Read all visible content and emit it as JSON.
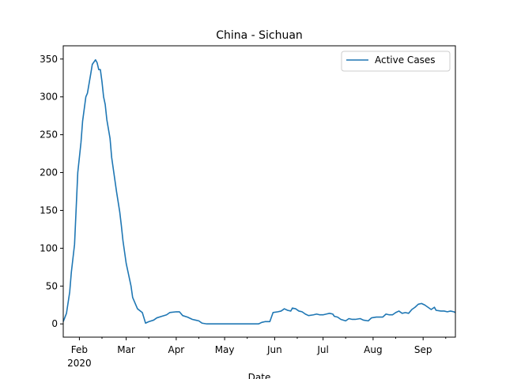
{
  "chart_data": {
    "type": "line",
    "title": "China - Sichuan",
    "xlabel": "Date",
    "ylabel": "",
    "xlim": [
      "2020-01-22",
      "2020-09-21"
    ],
    "ylim": [
      -17.5,
      367.5
    ],
    "y_ticks": [
      0,
      50,
      100,
      150,
      200,
      250,
      300,
      350
    ],
    "x_ticks": [
      {
        "date": "2020-02-01",
        "label": "Feb",
        "sublabel": "2020"
      },
      {
        "date": "2020-03-01",
        "label": "Mar",
        "sublabel": ""
      },
      {
        "date": "2020-04-01",
        "label": "Apr",
        "sublabel": ""
      },
      {
        "date": "2020-05-01",
        "label": "May",
        "sublabel": ""
      },
      {
        "date": "2020-06-01",
        "label": "Jun",
        "sublabel": ""
      },
      {
        "date": "2020-07-01",
        "label": "Jul",
        "sublabel": ""
      },
      {
        "date": "2020-08-01",
        "label": "Aug",
        "sublabel": ""
      },
      {
        "date": "2020-09-01",
        "label": "Sep",
        "sublabel": ""
      }
    ],
    "grid": false,
    "legend": "top-right",
    "series": [
      {
        "name": "Active Cases",
        "color": "#1f77b4",
        "points": [
          [
            "2020-01-22",
            3
          ],
          [
            "2020-01-24",
            14
          ],
          [
            "2020-01-26",
            42
          ],
          [
            "2020-01-27",
            68
          ],
          [
            "2020-01-29",
            105
          ],
          [
            "2020-01-31",
            200
          ],
          [
            "2020-02-02",
            240
          ],
          [
            "2020-02-03",
            268
          ],
          [
            "2020-02-05",
            300
          ],
          [
            "2020-02-06",
            305
          ],
          [
            "2020-02-08",
            330
          ],
          [
            "2020-02-09",
            343
          ],
          [
            "2020-02-11",
            349
          ],
          [
            "2020-02-12",
            345
          ],
          [
            "2020-02-13",
            336
          ],
          [
            "2020-02-14",
            336
          ],
          [
            "2020-02-15",
            320
          ],
          [
            "2020-02-16",
            300
          ],
          [
            "2020-02-17",
            290
          ],
          [
            "2020-02-18",
            270
          ],
          [
            "2020-02-20",
            245
          ],
          [
            "2020-02-21",
            220
          ],
          [
            "2020-02-23",
            190
          ],
          [
            "2020-02-24",
            175
          ],
          [
            "2020-02-26",
            148
          ],
          [
            "2020-02-27",
            130
          ],
          [
            "2020-02-28",
            110
          ],
          [
            "2020-03-01",
            80
          ],
          [
            "2020-03-02",
            70
          ],
          [
            "2020-03-04",
            50
          ],
          [
            "2020-03-05",
            35
          ],
          [
            "2020-03-07",
            25
          ],
          [
            "2020-03-08",
            20
          ],
          [
            "2020-03-11",
            15
          ],
          [
            "2020-03-12",
            8
          ],
          [
            "2020-03-13",
            1
          ],
          [
            "2020-03-15",
            3
          ],
          [
            "2020-03-18",
            5
          ],
          [
            "2020-03-20",
            8
          ],
          [
            "2020-03-23",
            10
          ],
          [
            "2020-03-26",
            12
          ],
          [
            "2020-03-28",
            15
          ],
          [
            "2020-04-01",
            16
          ],
          [
            "2020-04-03",
            16
          ],
          [
            "2020-04-05",
            11
          ],
          [
            "2020-04-08",
            9
          ],
          [
            "2020-04-11",
            6
          ],
          [
            "2020-04-13",
            5
          ],
          [
            "2020-04-15",
            4
          ],
          [
            "2020-04-17",
            1
          ],
          [
            "2020-04-20",
            0
          ],
          [
            "2020-05-01",
            0
          ],
          [
            "2020-05-15",
            0
          ],
          [
            "2020-05-20",
            0
          ],
          [
            "2020-05-22",
            0
          ],
          [
            "2020-05-24",
            2
          ],
          [
            "2020-05-26",
            3
          ],
          [
            "2020-05-28",
            3
          ],
          [
            "2020-05-29",
            3
          ],
          [
            "2020-05-31",
            15
          ],
          [
            "2020-06-03",
            16
          ],
          [
            "2020-06-05",
            17
          ],
          [
            "2020-06-07",
            20
          ],
          [
            "2020-06-09",
            18
          ],
          [
            "2020-06-11",
            17
          ],
          [
            "2020-06-12",
            21
          ],
          [
            "2020-06-14",
            20
          ],
          [
            "2020-06-16",
            17
          ],
          [
            "2020-06-18",
            16
          ],
          [
            "2020-06-20",
            13
          ],
          [
            "2020-06-22",
            11
          ],
          [
            "2020-06-25",
            12
          ],
          [
            "2020-06-27",
            13
          ],
          [
            "2020-06-29",
            12
          ],
          [
            "2020-07-01",
            12
          ],
          [
            "2020-07-03",
            13
          ],
          [
            "2020-07-05",
            14
          ],
          [
            "2020-07-07",
            13
          ],
          [
            "2020-07-08",
            10
          ],
          [
            "2020-07-10",
            9
          ],
          [
            "2020-07-12",
            6
          ],
          [
            "2020-07-15",
            4
          ],
          [
            "2020-07-17",
            7
          ],
          [
            "2020-07-19",
            6
          ],
          [
            "2020-07-21",
            6
          ],
          [
            "2020-07-24",
            7
          ],
          [
            "2020-07-26",
            5
          ],
          [
            "2020-07-29",
            4
          ],
          [
            "2020-07-31",
            8
          ],
          [
            "2020-08-03",
            9
          ],
          [
            "2020-08-07",
            9
          ],
          [
            "2020-08-09",
            13
          ],
          [
            "2020-08-11",
            12
          ],
          [
            "2020-08-13",
            12
          ],
          [
            "2020-08-15",
            15
          ],
          [
            "2020-08-17",
            17
          ],
          [
            "2020-08-19",
            14
          ],
          [
            "2020-08-21",
            15
          ],
          [
            "2020-08-23",
            14
          ],
          [
            "2020-08-25",
            19
          ],
          [
            "2020-08-27",
            22
          ],
          [
            "2020-08-29",
            26
          ],
          [
            "2020-08-31",
            27
          ],
          [
            "2020-09-02",
            25
          ],
          [
            "2020-09-04",
            22
          ],
          [
            "2020-09-06",
            19
          ],
          [
            "2020-09-08",
            22
          ],
          [
            "2020-09-09",
            18
          ],
          [
            "2020-09-12",
            17
          ],
          [
            "2020-09-14",
            17
          ],
          [
            "2020-09-16",
            16
          ],
          [
            "2020-09-18",
            17
          ],
          [
            "2020-09-20",
            16
          ],
          [
            "2020-09-21",
            15
          ]
        ]
      }
    ]
  }
}
